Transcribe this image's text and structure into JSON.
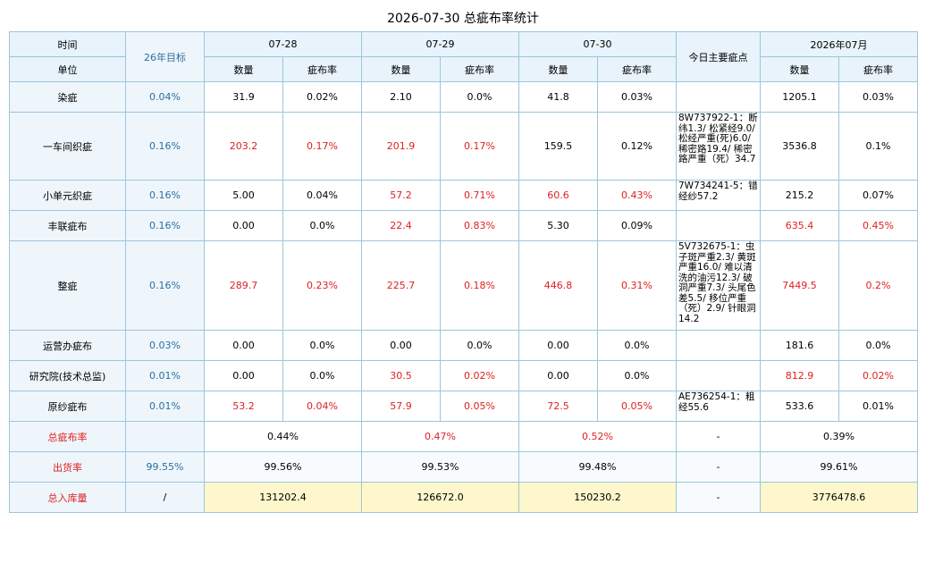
{
  "title": "2026-07-30 总疵布率统计",
  "header": {
    "time_label": "时间",
    "unit_label": "单位",
    "target_label": "26年目标",
    "dates": [
      "07-28",
      "07-29",
      "07-30"
    ],
    "main_defect_label": "今日主要疵点",
    "month_label": "2026年07月",
    "qty_label": "数量",
    "rate_label": "疵布率"
  },
  "rows": [
    {
      "name": "染疵",
      "target": "0.04%",
      "d1": {
        "q": "31.9",
        "r": "0.02%"
      },
      "d2": {
        "q": "2.10",
        "r": "0.0%"
      },
      "d3": {
        "q": "41.8",
        "r": "0.03%"
      },
      "note": "",
      "month": {
        "q": "1205.1",
        "r": "0.03%"
      }
    },
    {
      "name": "一车间织疵",
      "target": "0.16%",
      "d1": {
        "q": "203.2",
        "r": "0.17%"
      },
      "d2": {
        "q": "201.9",
        "r": "0.17%"
      },
      "d3": {
        "q": "159.5",
        "r": "0.12%"
      },
      "note": "8W737922-1：断纬1.3/ 松紧经9.0/ 松经严重(死)6.0/ 稀密路19.4/ 稀密路严重（死）34.7",
      "month": {
        "q": "3536.8",
        "r": "0.1%"
      }
    },
    {
      "name": "小单元织疵",
      "target": "0.16%",
      "d1": {
        "q": "5.00",
        "r": "0.04%"
      },
      "d2": {
        "q": "57.2",
        "r": "0.71%"
      },
      "d3": {
        "q": "60.6",
        "r": "0.43%"
      },
      "note": "7W734241-5：错经纱57.2",
      "month": {
        "q": "215.2",
        "r": "0.07%"
      }
    },
    {
      "name": "丰联疵布",
      "target": "0.16%",
      "d1": {
        "q": "0.00",
        "r": "0.0%"
      },
      "d2": {
        "q": "22.4",
        "r": "0.83%"
      },
      "d3": {
        "q": "5.30",
        "r": "0.09%"
      },
      "note": "",
      "month": {
        "q": "635.4",
        "r": "0.45%"
      }
    },
    {
      "name": "整疵",
      "target": "0.16%",
      "d1": {
        "q": "289.7",
        "r": "0.23%"
      },
      "d2": {
        "q": "225.7",
        "r": "0.18%"
      },
      "d3": {
        "q": "446.8",
        "r": "0.31%"
      },
      "note": "5V732675-1：虫子斑严重2.3/ 黄斑严重16.0/ 难以清洗的油污12.3/ 破洞严重7.3/ 头尾色差5.5/ 移位严重（死）2.9/ 针眼洞14.2",
      "month": {
        "q": "7449.5",
        "r": "0.2%"
      }
    },
    {
      "name": "运营办疵布",
      "target": "0.03%",
      "d1": {
        "q": "0.00",
        "r": "0.0%"
      },
      "d2": {
        "q": "0.00",
        "r": "0.0%"
      },
      "d3": {
        "q": "0.00",
        "r": "0.0%"
      },
      "note": "",
      "month": {
        "q": "181.6",
        "r": "0.0%"
      }
    },
    {
      "name": "研究院(技术总监)",
      "target": "0.01%",
      "d1": {
        "q": "0.00",
        "r": "0.0%"
      },
      "d2": {
        "q": "30.5",
        "r": "0.02%"
      },
      "d3": {
        "q": "0.00",
        "r": "0.0%"
      },
      "note": "",
      "month": {
        "q": "812.9",
        "r": "0.02%"
      }
    },
    {
      "name": "原纱疵布",
      "target": "0.01%",
      "d1": {
        "q": "53.2",
        "r": "0.04%"
      },
      "d2": {
        "q": "57.9",
        "r": "0.05%"
      },
      "d3": {
        "q": "72.5",
        "r": "0.05%"
      },
      "note": "AE736254-1：粗经55.6",
      "month": {
        "q": "533.6",
        "r": "0.01%"
      }
    }
  ],
  "summary": {
    "total_rate": {
      "label": "总疵布率",
      "target": "",
      "d1": "0.44%",
      "d2": "0.47%",
      "d3": "0.52%",
      "note": "-",
      "month": "0.39%"
    },
    "ship_rate": {
      "label": "出货率",
      "target": "99.55%",
      "d1": "99.56%",
      "d2": "99.53%",
      "d3": "99.48%",
      "note": "-",
      "month": "99.61%"
    },
    "stock_in": {
      "label": "总入库量",
      "target": "/",
      "d1": "131202.4",
      "d2": "126672.0",
      "d3": "150230.2",
      "note": "-",
      "month": "3776478.6"
    }
  },
  "colors": {
    "border": "#9cc6d9",
    "header_bg": "#e8f3fb",
    "highlight_red": "#e02020",
    "target_blue": "#2e6e9e",
    "stock_bg": "#fff7cc"
  }
}
